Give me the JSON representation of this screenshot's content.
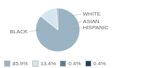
{
  "chart_data": {
    "type": "pie",
    "categories": [
      "BLACK",
      "WHITE",
      "ASIAN",
      "HISPANIC"
    ],
    "values": [
      85.9,
      13.4,
      0.4,
      0.4
    ],
    "value_labels": [
      "85.9%",
      "13.4%",
      "0.4%",
      "0.4%"
    ],
    "colors": [
      "#9ab4c4",
      "#d6e6ef",
      "#5a7f98",
      "#1e3f5a"
    ],
    "legend": "lower left"
  }
}
